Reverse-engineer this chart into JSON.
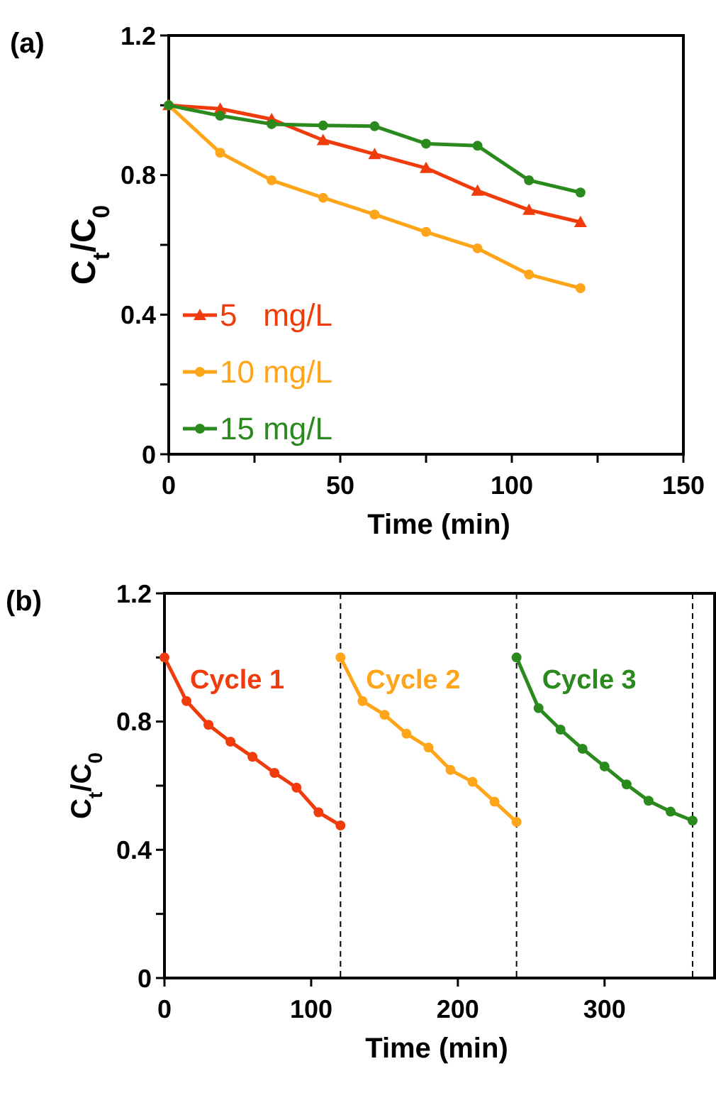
{
  "chart_data": [
    {
      "type": "line",
      "title": "(a)",
      "xlabel": "Time (min)",
      "ylabel": "C$_{t}$/C$_{0}$",
      "x": [
        0,
        15,
        30,
        45,
        60,
        75,
        90,
        105,
        120
      ],
      "xlim": [
        0,
        150
      ],
      "xticks": [
        0,
        {
          "value": 25,
          "label": null
        },
        50,
        {
          "value": 75,
          "label": null
        },
        100,
        {
          "value": 125,
          "label": null
        },
        150
      ],
      "ylim": [
        0,
        1.2
      ],
      "yticks": [
        0,
        {
          "value": 0.2,
          "label": null
        },
        0.4,
        {
          "value": 0.6,
          "label": null
        },
        0.8,
        {
          "value": 1.0,
          "label": null
        },
        1.2
      ],
      "grid": false,
      "legend": "bottom left",
      "line_style": "solid",
      "series": [
        {
          "name": "5   mg/L",
          "color": "#f03c0c",
          "marker": "triangle",
          "values": [
            1.0,
            0.99,
            0.96,
            0.9,
            0.86,
            0.82,
            0.755,
            0.7,
            0.665
          ]
        },
        {
          "name": "10 mg/L",
          "color": "#ffa51a",
          "marker": "circle",
          "values": [
            1.0,
            0.864,
            0.785,
            0.735,
            0.687,
            0.637,
            0.59,
            0.515,
            0.476
          ]
        },
        {
          "name": "15 mg/L",
          "color": "#2a8a1e",
          "marker": "circle",
          "values": [
            1.0,
            0.97,
            0.946,
            0.942,
            0.94,
            0.89,
            0.884,
            0.785,
            0.75
          ]
        }
      ]
    },
    {
      "type": "line",
      "title": "(b)",
      "xlabel": "Time (min)",
      "ylabel": "C$_{t}$/C$_{0}$",
      "xlim": [
        0,
        375
      ],
      "xticks": [
        0,
        100,
        200,
        300
      ],
      "ylim": [
        0,
        1.2
      ],
      "yticks": [
        0,
        {
          "value": 0.2,
          "label": null
        },
        0.4,
        {
          "value": 0.6,
          "label": null
        },
        0.8,
        {
          "value": 1.0,
          "label": null
        },
        1.2
      ],
      "grid": false,
      "legend": false,
      "marker": "circle",
      "line_style": "solid",
      "ref_lines": [
        {
          "axis": "x",
          "value": 120,
          "color": "#000000",
          "line_style": "dashed"
        },
        {
          "axis": "x",
          "value": 240,
          "color": "#000000",
          "line_style": "dashed"
        },
        {
          "axis": "x",
          "value": 360,
          "color": "#000000",
          "line_style": "dashed"
        }
      ],
      "series": [
        {
          "name": "Cycle 1",
          "color": "#f03c0c",
          "x": [
            0,
            15,
            30,
            45,
            60,
            75,
            90,
            105,
            120
          ],
          "values": [
            1.0,
            0.864,
            0.79,
            0.737,
            0.69,
            0.64,
            0.594,
            0.517,
            0.476
          ]
        },
        {
          "name": "Cycle 2",
          "color": "#ffa51a",
          "x": [
            120,
            135,
            150,
            165,
            180,
            195,
            210,
            225,
            240
          ],
          "values": [
            1.0,
            0.864,
            0.821,
            0.762,
            0.719,
            0.649,
            0.612,
            0.55,
            0.487
          ]
        },
        {
          "name": "Cycle 3",
          "color": "#2a8a1e",
          "x": [
            240,
            255,
            270,
            285,
            300,
            315,
            330,
            345,
            360
          ],
          "values": [
            1.0,
            0.842,
            0.775,
            0.715,
            0.66,
            0.604,
            0.553,
            0.519,
            0.491
          ]
        }
      ]
    }
  ]
}
